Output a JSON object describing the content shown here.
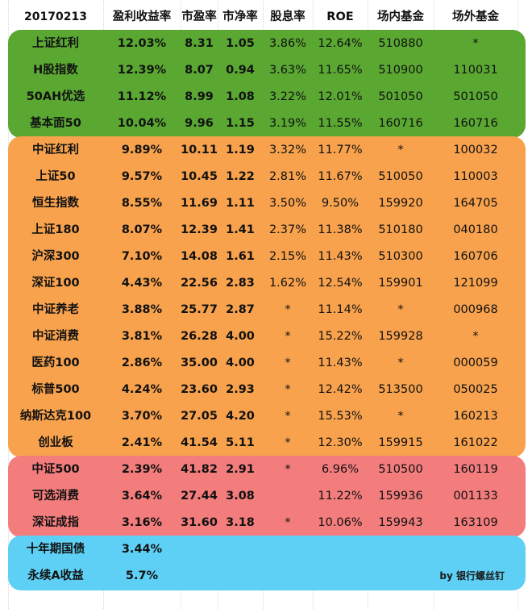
{
  "header": {
    "date": "20170213",
    "columns": [
      "盈利收益率",
      "市盈率",
      "市净率",
      "股息率",
      "ROE",
      "场内基金",
      "场外基金"
    ]
  },
  "colors": {
    "green": "#5aa832",
    "orange": "#f8a24d",
    "red": "#f37c7c",
    "blue": "#5fd0f5"
  },
  "groups": [
    {
      "color": "green",
      "rows": [
        [
          "上证红利",
          "12.03%",
          "8.31",
          "1.05",
          "3.86%",
          "12.64%",
          "510880",
          "*"
        ],
        [
          "H股指数",
          "12.39%",
          "8.07",
          "0.94",
          "3.63%",
          "11.65%",
          "510900",
          "110031"
        ],
        [
          "50AH优选",
          "11.12%",
          "8.99",
          "1.08",
          "3.22%",
          "12.01%",
          "501050",
          "501050"
        ],
        [
          "基本面50",
          "10.04%",
          "9.96",
          "1.15",
          "3.19%",
          "11.55%",
          "160716",
          "160716"
        ]
      ]
    },
    {
      "color": "orange",
      "rows": [
        [
          "中证红利",
          "9.89%",
          "10.11",
          "1.19",
          "3.32%",
          "11.77%",
          "*",
          "100032"
        ],
        [
          "上证50",
          "9.57%",
          "10.45",
          "1.22",
          "2.81%",
          "11.67%",
          "510050",
          "110003"
        ],
        [
          "恒生指数",
          "8.55%",
          "11.69",
          "1.11",
          "3.50%",
          "9.50%",
          "159920",
          "164705"
        ],
        [
          "上证180",
          "8.07%",
          "12.39",
          "1.41",
          "2.37%",
          "11.38%",
          "510180",
          "040180"
        ],
        [
          "沪深300",
          "7.10%",
          "14.08",
          "1.61",
          "2.15%",
          "11.43%",
          "510300",
          "160706"
        ],
        [
          "深证100",
          "4.43%",
          "22.56",
          "2.83",
          "1.62%",
          "12.54%",
          "159901",
          "121099"
        ],
        [
          "中证养老",
          "3.88%",
          "25.77",
          "2.87",
          "*",
          "11.14%",
          "*",
          "000968"
        ],
        [
          "中证消费",
          "3.81%",
          "26.28",
          "4.00",
          "*",
          "15.22%",
          "159928",
          "*"
        ],
        [
          "医药100",
          "2.86%",
          "35.00",
          "4.00",
          "*",
          "11.43%",
          "*",
          "000059"
        ],
        [
          "标普500",
          "4.24%",
          "23.60",
          "2.93",
          "*",
          "12.42%",
          "513500",
          "050025"
        ],
        [
          "纳斯达克100",
          "3.70%",
          "27.05",
          "4.20",
          "*",
          "15.53%",
          "*",
          "160213"
        ],
        [
          "创业板",
          "2.41%",
          "41.54",
          "5.11",
          "*",
          "12.30%",
          "159915",
          "161022"
        ]
      ]
    },
    {
      "color": "red",
      "rows": [
        [
          "中证500",
          "2.39%",
          "41.82",
          "2.91",
          "*",
          "6.96%",
          "510500",
          "160119"
        ],
        [
          "可选消费",
          "3.64%",
          "27.44",
          "3.08",
          "",
          "11.22%",
          "159936",
          "001133"
        ],
        [
          "深证成指",
          "3.16%",
          "31.60",
          "3.18",
          "*",
          "10.06%",
          "159943",
          "163109"
        ]
      ]
    },
    {
      "color": "blue",
      "rows": [
        [
          "十年期国债",
          "3.44%",
          "",
          "",
          "",
          "",
          "",
          ""
        ],
        [
          "永续A收益",
          "5.7%",
          "",
          "",
          "",
          "",
          "",
          ""
        ]
      ]
    }
  ],
  "credit": "by 银行螺丝钉"
}
